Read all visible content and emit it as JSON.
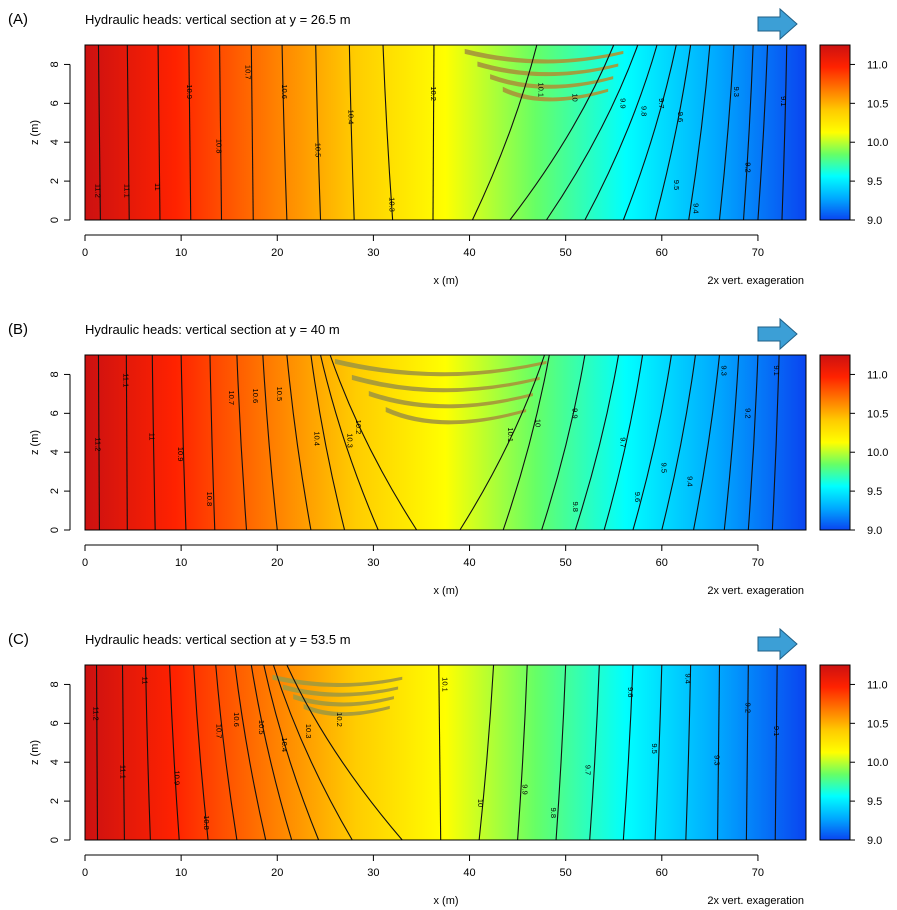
{
  "figure": {
    "xlabel": "x (m)",
    "ylabel": "z (m)",
    "exaggeration_note": "2x vert. exageration",
    "flow_arrow_icon": "right-arrow-icon",
    "flow_arrow_color": "#3c9fd6"
  },
  "colorbar": {
    "ticks": [
      11.0,
      10.5,
      10.0,
      9.5,
      9.0
    ],
    "tick_labels": [
      "11.0",
      "10.5",
      "10.0",
      "9.5",
      "9.0"
    ],
    "range": [
      9.0,
      11.25
    ],
    "colors": [
      "#0a44f0",
      "#00aaff",
      "#00ffff",
      "#66ff66",
      "#ffff00",
      "#ffcc00",
      "#ff7700",
      "#ff2200",
      "#cc1111"
    ]
  },
  "chart_data": [
    {
      "type": "heatmap",
      "panel_label": "(A)",
      "title": "Hydraulic heads: vertical section at y = 26.5 m",
      "xlabel": "x (m)",
      "ylabel": "z (m)",
      "xlim": [
        0,
        75
      ],
      "ylim": [
        0,
        9
      ],
      "xticks": [
        0,
        10,
        20,
        30,
        40,
        50,
        60,
        70
      ],
      "yticks": [
        0,
        2,
        4,
        6,
        8
      ],
      "head_range": [
        9.0,
        11.25
      ],
      "contour_levels": [
        {
          "label": "11.2",
          "x_top": 1.4,
          "x_bottom": 1.6,
          "label_pos": [
            1.4,
            1.5
          ]
        },
        {
          "label": "11.1",
          "x_top": 4.4,
          "x_bottom": 4.6,
          "label_pos": [
            4.4,
            1.5
          ]
        },
        {
          "label": "11",
          "x_top": 7.6,
          "x_bottom": 7.8,
          "label_pos": [
            7.6,
            1.7
          ]
        },
        {
          "label": "10.9",
          "x_top": 10.8,
          "x_bottom": 11.0,
          "label_pos": [
            10.9,
            6.6
          ]
        },
        {
          "label": "10.8",
          "x_top": 14.0,
          "x_bottom": 14.2,
          "label_pos": [
            14.0,
            3.8
          ]
        },
        {
          "label": "10.7",
          "x_top": 17.3,
          "x_bottom": 17.5,
          "label_pos": [
            17.0,
            7.6
          ]
        },
        {
          "label": "10.6",
          "x_top": 20.5,
          "x_bottom": 21.0,
          "label_pos": [
            20.8,
            6.6
          ]
        },
        {
          "label": "10.5",
          "x_top": 24.0,
          "x_bottom": 24.5,
          "label_pos": [
            24.3,
            3.6
          ]
        },
        {
          "label": "10.4",
          "x_top": 27.5,
          "x_bottom": 28.0,
          "label_pos": [
            27.7,
            5.3
          ]
        },
        {
          "label": "10.3",
          "x_top": 31.0,
          "x_bottom": 32.0,
          "label_pos": [
            32.0,
            0.8
          ]
        },
        {
          "label": "10.2",
          "x_top": 36.3,
          "x_bottom": 36.2,
          "label_pos": [
            36.3,
            6.5
          ]
        },
        {
          "label": "10.1",
          "x_top": 47.0,
          "x_bottom": 40.3,
          "label_pos": [
            47.5,
            6.7
          ]
        },
        {
          "label": "10",
          "x_top": 55.0,
          "x_bottom": 44.2,
          "label_pos": [
            51.0,
            6.3
          ]
        },
        {
          "label": "9.9",
          "x_top": 57.5,
          "x_bottom": 48.0,
          "label_pos": [
            56.0,
            6.0
          ]
        },
        {
          "label": "9.8",
          "x_top": 59.5,
          "x_bottom": 52.0,
          "label_pos": [
            58.2,
            5.6
          ]
        },
        {
          "label": "9.7",
          "x_top": 61.5,
          "x_bottom": 56.0,
          "label_pos": [
            60.0,
            6.0
          ]
        },
        {
          "label": "9.6",
          "x_top": 63.0,
          "x_bottom": 59.3,
          "label_pos": [
            62.0,
            5.3
          ]
        },
        {
          "label": "9.5",
          "x_top": 65.0,
          "x_bottom": 62.8,
          "label_pos": [
            61.6,
            1.8
          ]
        },
        {
          "label": "9.4",
          "x_top": 67.5,
          "x_bottom": 66.0,
          "label_pos": [
            63.6,
            0.6
          ]
        },
        {
          "label": "9.3",
          "x_top": 69.5,
          "x_bottom": 68.5,
          "label_pos": [
            67.8,
            6.6
          ]
        },
        {
          "label": "9.2",
          "x_top": 71.0,
          "x_bottom": 70.0,
          "label_pos": [
            69.0,
            2.7
          ]
        },
        {
          "label": "9.1",
          "x_top": 73.0,
          "x_bottom": 72.5,
          "label_pos": [
            72.7,
            6.1
          ]
        }
      ],
      "low_conductivity_lens": {
        "x": [
          39.5,
          56
        ],
        "z": [
          6.2,
          8.8
        ]
      }
    },
    {
      "type": "heatmap",
      "panel_label": "(B)",
      "title": "Hydraulic heads: vertical section at y = 40 m",
      "xlabel": "x (m)",
      "ylabel": "z (m)",
      "xlim": [
        0,
        75
      ],
      "ylim": [
        0,
        9
      ],
      "xticks": [
        0,
        10,
        20,
        30,
        40,
        50,
        60,
        70
      ],
      "yticks": [
        0,
        2,
        4,
        6,
        8
      ],
      "head_range": [
        9.0,
        11.25
      ],
      "contour_levels": [
        {
          "label": "11.2",
          "x_top": 1.4,
          "x_bottom": 1.5,
          "label_pos": [
            1.4,
            4.4
          ]
        },
        {
          "label": "11.1",
          "x_top": 4.3,
          "x_bottom": 4.4,
          "label_pos": [
            4.3,
            7.7
          ]
        },
        {
          "label": "11",
          "x_top": 7.0,
          "x_bottom": 7.3,
          "label_pos": [
            7.0,
            4.8
          ]
        },
        {
          "label": "10.9",
          "x_top": 10.0,
          "x_bottom": 10.5,
          "label_pos": [
            10.0,
            3.9
          ]
        },
        {
          "label": "10.8",
          "x_top": 13.0,
          "x_bottom": 13.5,
          "label_pos": [
            13.0,
            1.6
          ]
        },
        {
          "label": "10.7",
          "x_top": 15.8,
          "x_bottom": 16.8,
          "label_pos": [
            15.3,
            6.8
          ]
        },
        {
          "label": "10.6",
          "x_top": 18.5,
          "x_bottom": 20.0,
          "label_pos": [
            17.8,
            6.9
          ]
        },
        {
          "label": "10.5",
          "x_top": 21.0,
          "x_bottom": 23.5,
          "label_pos": [
            20.3,
            7.0
          ]
        },
        {
          "label": "10.4",
          "x_top": 23.5,
          "x_bottom": 27.0,
          "label_pos": [
            24.2,
            4.7
          ]
        },
        {
          "label": "10.3",
          "x_top": 24.5,
          "x_bottom": 30.5,
          "label_pos": [
            27.6,
            4.6
          ]
        },
        {
          "label": "10.2",
          "x_top": 25.5,
          "x_bottom": 34.5,
          "label_pos": [
            28.5,
            5.3
          ]
        },
        {
          "label": "10.1",
          "x_top": 47.8,
          "x_bottom": 39.0,
          "label_pos": [
            44.3,
            4.9
          ]
        },
        {
          "label": "10",
          "x_top": 48.3,
          "x_bottom": 43.5,
          "label_pos": [
            47.2,
            5.5
          ]
        },
        {
          "label": "9.9",
          "x_top": 52.0,
          "x_bottom": 47.5,
          "label_pos": [
            51.0,
            6.0
          ]
        },
        {
          "label": "9.8",
          "x_top": 55.5,
          "x_bottom": 51.0,
          "label_pos": [
            51.1,
            1.2
          ]
        },
        {
          "label": "9.7",
          "x_top": 58.0,
          "x_bottom": 54.0,
          "label_pos": [
            56.0,
            4.5
          ]
        },
        {
          "label": "9.6",
          "x_top": 61.0,
          "x_bottom": 57.0,
          "label_pos": [
            57.5,
            1.7
          ]
        },
        {
          "label": "9.5",
          "x_top": 63.5,
          "x_bottom": 60.0,
          "label_pos": [
            60.3,
            3.2
          ]
        },
        {
          "label": "9.4",
          "x_top": 66.0,
          "x_bottom": 63.3,
          "label_pos": [
            63.0,
            2.5
          ]
        },
        {
          "label": "9.3",
          "x_top": 68.0,
          "x_bottom": 66.5,
          "label_pos": [
            66.5,
            8.2
          ]
        },
        {
          "label": "9.2",
          "x_top": 70.0,
          "x_bottom": 69.0,
          "label_pos": [
            69.0,
            6.0
          ]
        },
        {
          "label": "9.1",
          "x_top": 72.2,
          "x_bottom": 71.5,
          "label_pos": [
            72.0,
            8.2
          ]
        }
      ],
      "low_conductivity_lens": {
        "x": [
          26,
          48
        ],
        "z": [
          5.5,
          8.8
        ]
      }
    },
    {
      "type": "heatmap",
      "panel_label": "(C)",
      "title": "Hydraulic heads: vertical section at y = 53.5 m",
      "xlabel": "x (m)",
      "ylabel": "z (m)",
      "xlim": [
        0,
        75
      ],
      "ylim": [
        0,
        9
      ],
      "xticks": [
        0,
        10,
        20,
        30,
        40,
        50,
        60,
        70
      ],
      "yticks": [
        0,
        2,
        4,
        6,
        8
      ],
      "head_range": [
        9.0,
        11.25
      ],
      "contour_levels": [
        {
          "label": "11.2",
          "x_top": 1.2,
          "x_bottom": 1.3,
          "label_pos": [
            1.2,
            6.5
          ]
        },
        {
          "label": "11.1",
          "x_top": 3.9,
          "x_bottom": 4.1,
          "label_pos": [
            4.0,
            3.5
          ]
        },
        {
          "label": "11",
          "x_top": 6.3,
          "x_bottom": 6.8,
          "label_pos": [
            6.3,
            8.2
          ]
        },
        {
          "label": "10.9",
          "x_top": 8.8,
          "x_bottom": 9.8,
          "label_pos": [
            9.6,
            3.2
          ]
        },
        {
          "label": "10.8",
          "x_top": 11.3,
          "x_bottom": 12.8,
          "label_pos": [
            12.7,
            0.9
          ]
        },
        {
          "label": "10.7",
          "x_top": 13.6,
          "x_bottom": 15.8,
          "label_pos": [
            14.0,
            5.6
          ]
        },
        {
          "label": "10.6",
          "x_top": 15.6,
          "x_bottom": 18.8,
          "label_pos": [
            15.8,
            6.2
          ]
        },
        {
          "label": "10.5",
          "x_top": 17.3,
          "x_bottom": 21.5,
          "label_pos": [
            18.4,
            5.8
          ]
        },
        {
          "label": "10.4",
          "x_top": 18.6,
          "x_bottom": 24.3,
          "label_pos": [
            20.8,
            4.9
          ]
        },
        {
          "label": "10.3",
          "x_top": 19.6,
          "x_bottom": 27.8,
          "label_pos": [
            23.3,
            5.6
          ]
        },
        {
          "label": "10.2",
          "x_top": 21.0,
          "x_bottom": 33.0,
          "label_pos": [
            26.5,
            6.2
          ]
        },
        {
          "label": "10.1",
          "x_top": 36.8,
          "x_bottom": 37.0,
          "label_pos": [
            37.5,
            8.0
          ]
        },
        {
          "label": "10",
          "x_top": 42.5,
          "x_bottom": 41.0,
          "label_pos": [
            41.2,
            1.9
          ]
        },
        {
          "label": "9.9",
          "x_top": 46.0,
          "x_bottom": 45.0,
          "label_pos": [
            45.8,
            2.6
          ]
        },
        {
          "label": "9.8",
          "x_top": 50.0,
          "x_bottom": 49.0,
          "label_pos": [
            48.8,
            1.4
          ]
        },
        {
          "label": "9.7",
          "x_top": 53.5,
          "x_bottom": 52.5,
          "label_pos": [
            52.4,
            3.6
          ]
        },
        {
          "label": "9.6",
          "x_top": 57.0,
          "x_bottom": 56.0,
          "label_pos": [
            56.8,
            7.6
          ]
        },
        {
          "label": "9.5",
          "x_top": 60.0,
          "x_bottom": 59.3,
          "label_pos": [
            59.3,
            4.7
          ]
        },
        {
          "label": "9.4",
          "x_top": 63.0,
          "x_bottom": 62.5,
          "label_pos": [
            62.8,
            8.3
          ]
        },
        {
          "label": "9.3",
          "x_top": 66.0,
          "x_bottom": 65.8,
          "label_pos": [
            65.8,
            4.1
          ]
        },
        {
          "label": "9.2",
          "x_top": 69.0,
          "x_bottom": 68.8,
          "label_pos": [
            69.0,
            6.8
          ]
        },
        {
          "label": "9.1",
          "x_top": 72.0,
          "x_bottom": 71.8,
          "label_pos": [
            72.0,
            5.6
          ]
        }
      ],
      "low_conductivity_lens": {
        "x": [
          19.5,
          33
        ],
        "z": [
          6.5,
          8.5
        ]
      }
    }
  ]
}
